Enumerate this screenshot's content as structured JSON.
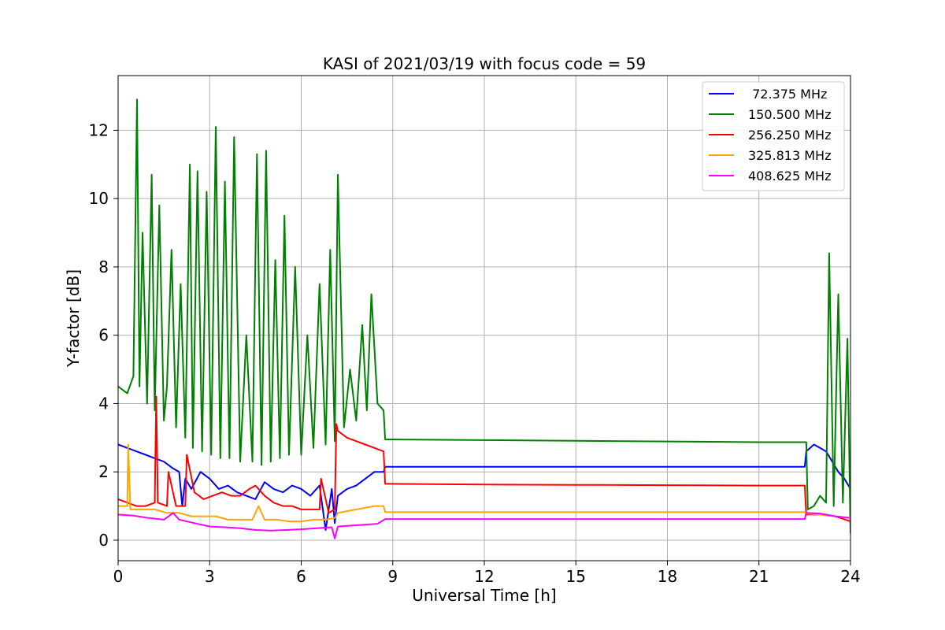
{
  "chart_data": {
    "type": "line",
    "title": "KASI of 2021/03/19 with focus code = 59",
    "xlabel": "Universal Time [h]",
    "ylabel": "Y-factor [dB]",
    "xlim": [
      0,
      24
    ],
    "ylim": [
      -0.6,
      13.6
    ],
    "xticks": [
      0,
      3,
      6,
      9,
      12,
      15,
      18,
      21,
      24
    ],
    "yticks": [
      0,
      2,
      4,
      6,
      8,
      10,
      12
    ],
    "grid": true,
    "legend_position": "top-right",
    "series": [
      {
        "name": " 72.375 MHz",
        "color": "#0000ff",
        "x": [
          0,
          0.3,
          0.6,
          0.9,
          1.2,
          1.5,
          1.8,
          2.0,
          2.1,
          2.2,
          2.4,
          2.7,
          3.0,
          3.3,
          3.6,
          3.9,
          4.2,
          4.5,
          4.8,
          5.1,
          5.4,
          5.7,
          6.0,
          6.3,
          6.6,
          6.8,
          7.0,
          7.1,
          7.2,
          7.5,
          7.8,
          8.1,
          8.4,
          8.7,
          8.75,
          9.0,
          12,
          15,
          18,
          21,
          22.5,
          22.55,
          22.8,
          23.0,
          23.2,
          23.4,
          23.6,
          23.8,
          24.0
        ],
        "y": [
          2.8,
          2.7,
          2.6,
          2.5,
          2.4,
          2.3,
          2.1,
          2.0,
          1.0,
          1.8,
          1.5,
          2.0,
          1.8,
          1.5,
          1.6,
          1.4,
          1.3,
          1.2,
          1.7,
          1.5,
          1.4,
          1.6,
          1.5,
          1.3,
          1.6,
          0.3,
          1.5,
          0.5,
          1.3,
          1.5,
          1.6,
          1.8,
          2.0,
          2.0,
          2.15,
          2.15,
          2.15,
          2.15,
          2.15,
          2.15,
          2.15,
          2.6,
          2.8,
          2.7,
          2.6,
          2.3,
          2.0,
          1.8,
          1.5
        ]
      },
      {
        "name": "150.500 MHz",
        "color": "#008000",
        "x": [
          0,
          0.3,
          0.5,
          0.62,
          0.7,
          0.8,
          0.95,
          1.1,
          1.2,
          1.35,
          1.5,
          1.6,
          1.75,
          1.9,
          2.05,
          2.2,
          2.35,
          2.45,
          2.6,
          2.75,
          2.9,
          3.05,
          3.2,
          3.35,
          3.5,
          3.65,
          3.8,
          4.0,
          4.2,
          4.4,
          4.55,
          4.7,
          4.85,
          5.0,
          5.15,
          5.3,
          5.45,
          5.6,
          5.8,
          6.0,
          6.2,
          6.4,
          6.6,
          6.8,
          6.95,
          7.1,
          7.2,
          7.4,
          7.6,
          7.8,
          8.0,
          8.15,
          8.3,
          8.5,
          8.7,
          8.75,
          9.0,
          12,
          15,
          18,
          21,
          22.55,
          22.6,
          22.8,
          23.0,
          23.2,
          23.3,
          23.45,
          23.6,
          23.75,
          23.9,
          24.0
        ],
        "y": [
          4.5,
          4.3,
          4.8,
          12.9,
          4.5,
          9.0,
          4.0,
          10.7,
          3.8,
          9.8,
          3.5,
          4.5,
          8.5,
          3.3,
          7.5,
          3.0,
          11.0,
          2.7,
          10.8,
          2.6,
          10.2,
          2.5,
          12.1,
          2.4,
          10.5,
          2.4,
          11.8,
          2.3,
          6.0,
          2.3,
          11.3,
          2.2,
          11.4,
          2.3,
          8.2,
          2.4,
          9.5,
          2.5,
          8.0,
          2.5,
          6.0,
          2.7,
          7.5,
          2.8,
          8.5,
          2.9,
          10.7,
          3.3,
          5.0,
          3.5,
          6.3,
          3.8,
          7.2,
          4.0,
          3.8,
          2.95,
          2.95,
          2.93,
          2.91,
          2.89,
          2.87,
          2.87,
          0.9,
          1.0,
          1.3,
          1.1,
          8.4,
          1.0,
          7.2,
          1.1,
          5.9,
          0.2
        ]
      },
      {
        "name": "256.250 MHz",
        "color": "#ff0000",
        "x": [
          0,
          0.3,
          0.6,
          0.9,
          1.2,
          1.25,
          1.3,
          1.6,
          1.65,
          1.9,
          2.2,
          2.25,
          2.5,
          2.8,
          3.1,
          3.4,
          3.7,
          4.0,
          4.3,
          4.5,
          4.8,
          5.1,
          5.4,
          5.7,
          6.0,
          6.3,
          6.6,
          6.65,
          6.9,
          7.1,
          7.15,
          7.2,
          7.5,
          7.8,
          8.1,
          8.4,
          8.7,
          8.75,
          9.0,
          12,
          15,
          18,
          21,
          22.5,
          22.55,
          23.0,
          23.5,
          24.0
        ],
        "y": [
          1.2,
          1.1,
          1.0,
          1.0,
          1.1,
          4.2,
          1.1,
          1.0,
          2.0,
          1.0,
          1.0,
          2.5,
          1.4,
          1.2,
          1.3,
          1.4,
          1.3,
          1.3,
          1.5,
          1.6,
          1.3,
          1.1,
          1.0,
          1.0,
          0.9,
          0.9,
          0.9,
          1.8,
          0.8,
          0.9,
          3.4,
          3.2,
          3.0,
          2.9,
          2.8,
          2.7,
          2.6,
          1.65,
          1.65,
          1.63,
          1.62,
          1.61,
          1.6,
          1.6,
          0.75,
          0.75,
          0.7,
          0.55
        ]
      },
      {
        "name": "325.813 MHz",
        "color": "#ffa500",
        "x": [
          0,
          0.3,
          0.33,
          0.4,
          0.8,
          1.2,
          1.6,
          2.0,
          2.4,
          2.8,
          3.2,
          3.6,
          4.0,
          4.4,
          4.6,
          4.8,
          5.2,
          5.6,
          6.0,
          6.4,
          6.8,
          7.1,
          7.2,
          7.5,
          7.8,
          8.1,
          8.4,
          8.7,
          8.75,
          9.0,
          12,
          15,
          18,
          21,
          22.5,
          22.55,
          23.0,
          23.5,
          24.0
        ],
        "y": [
          1.0,
          1.0,
          2.8,
          0.9,
          0.9,
          0.9,
          0.8,
          0.8,
          0.7,
          0.7,
          0.7,
          0.6,
          0.6,
          0.6,
          1.0,
          0.6,
          0.6,
          0.55,
          0.55,
          0.6,
          0.6,
          0.65,
          0.8,
          0.85,
          0.9,
          0.95,
          1.0,
          1.0,
          0.82,
          0.82,
          0.82,
          0.82,
          0.82,
          0.82,
          0.82,
          0.78,
          0.75,
          0.7,
          0.65
        ]
      },
      {
        "name": "408.625 MHz",
        "color": "#ff00ff",
        "x": [
          0,
          0.5,
          1.0,
          1.5,
          1.8,
          2.0,
          2.5,
          3.0,
          3.5,
          4.0,
          4.5,
          5.0,
          5.5,
          6.0,
          6.5,
          7.0,
          7.1,
          7.2,
          7.5,
          8.0,
          8.5,
          8.75,
          9.0,
          12,
          15,
          18,
          21,
          22.5,
          22.55,
          23.0,
          23.5,
          24.0
        ],
        "y": [
          0.75,
          0.72,
          0.65,
          0.6,
          0.8,
          0.6,
          0.5,
          0.4,
          0.38,
          0.35,
          0.3,
          0.28,
          0.3,
          0.32,
          0.35,
          0.38,
          0.05,
          0.4,
          0.42,
          0.45,
          0.48,
          0.62,
          0.62,
          0.62,
          0.62,
          0.62,
          0.62,
          0.62,
          0.8,
          0.78,
          0.7,
          0.65
        ]
      }
    ]
  }
}
